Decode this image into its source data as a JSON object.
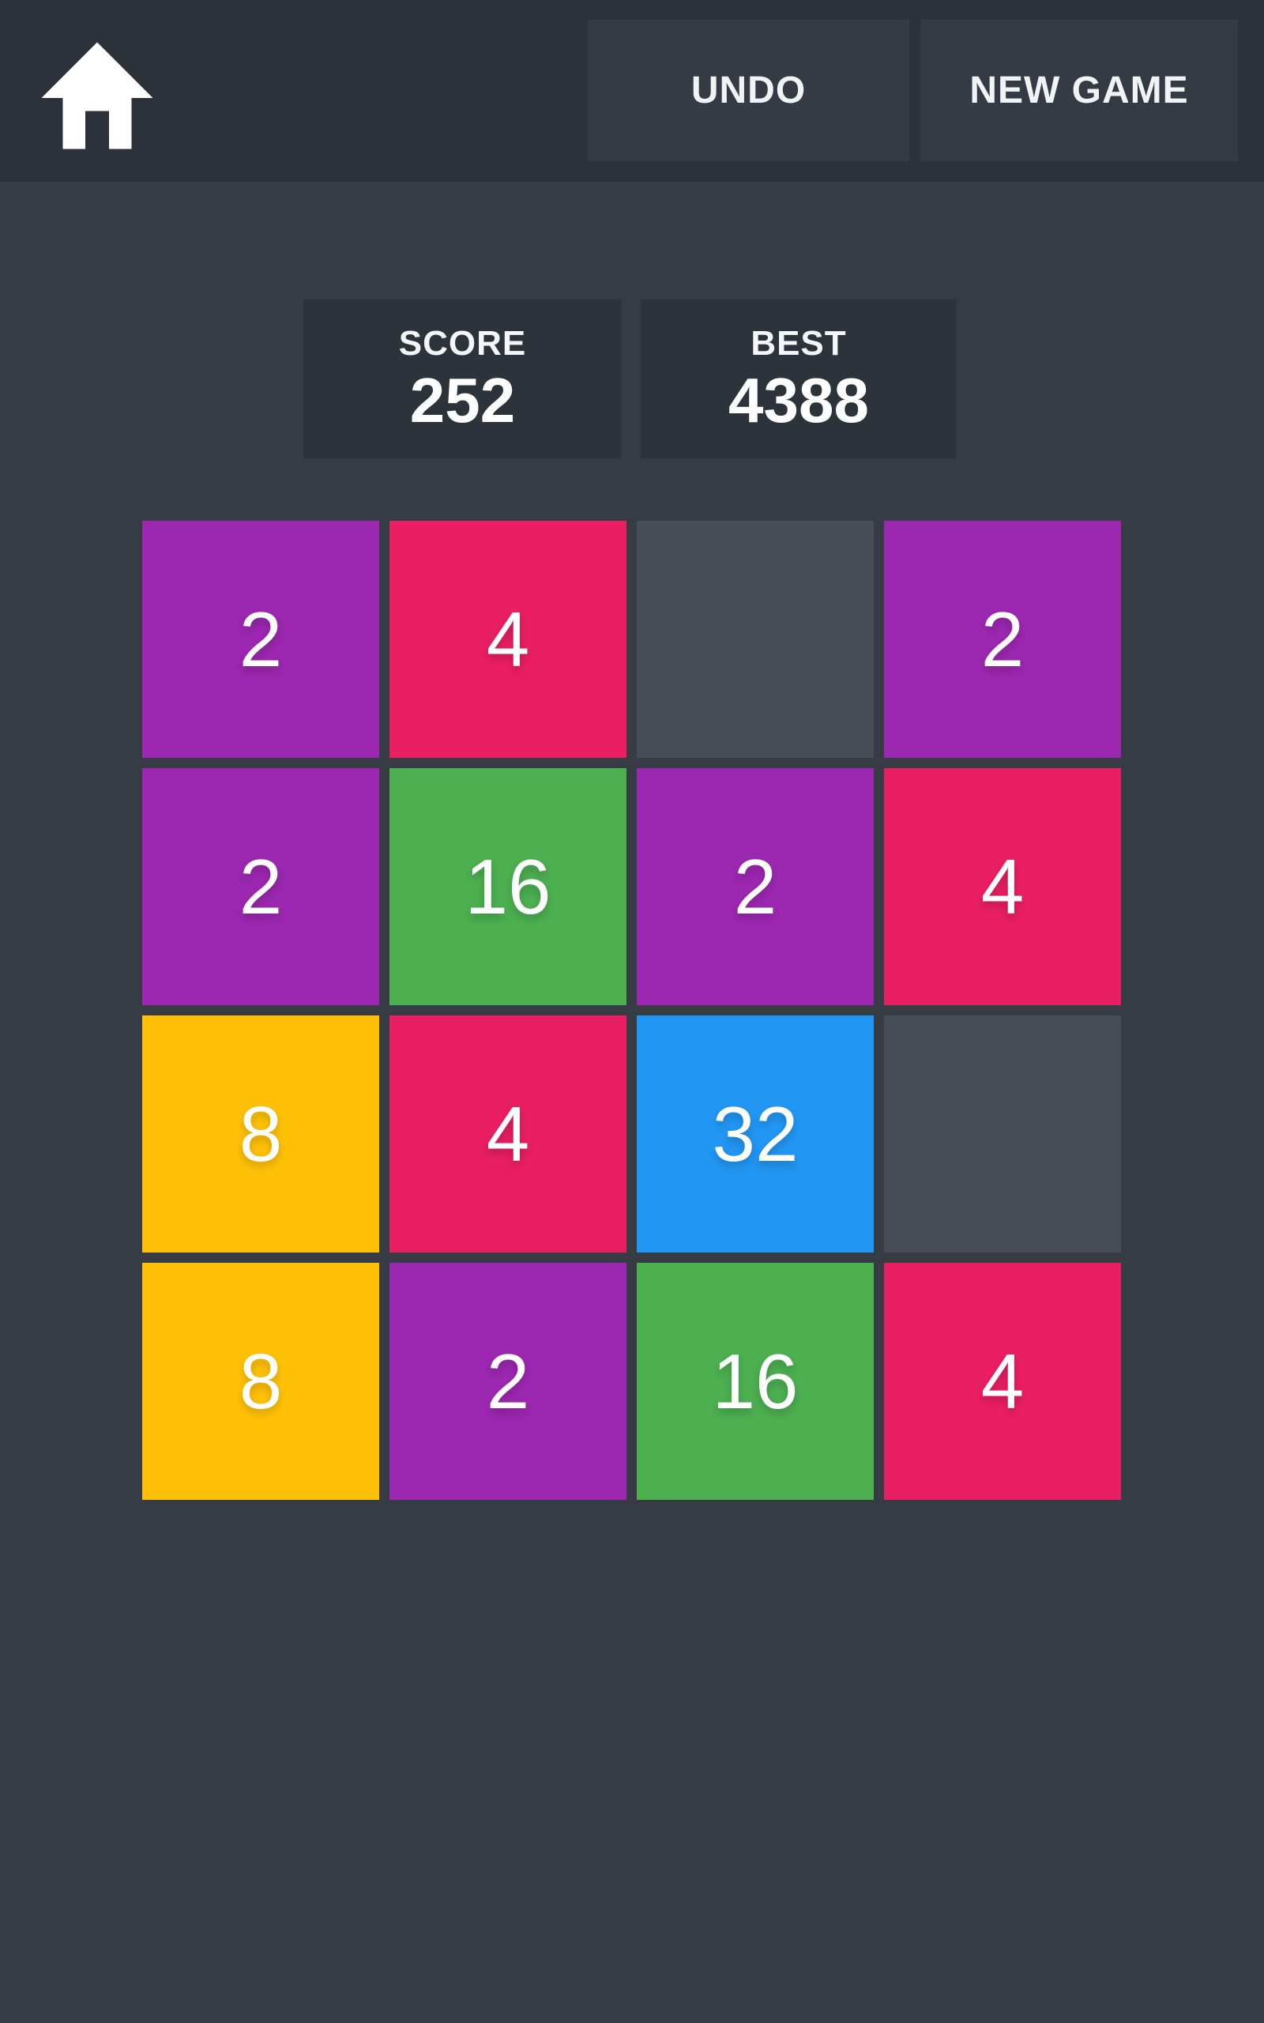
{
  "header": {
    "undo_label": "UNDO",
    "new_game_label": "NEW GAME",
    "home_icon": "home-icon"
  },
  "scoreboard": {
    "score_label": "SCORE",
    "score_value": "252",
    "best_label": "BEST",
    "best_value": "4388"
  },
  "board": {
    "rows": 4,
    "cols": 4,
    "cells": [
      {
        "value": "2",
        "color": "purple"
      },
      {
        "value": "4",
        "color": "pink"
      },
      {
        "value": "",
        "color": "empty"
      },
      {
        "value": "2",
        "color": "purple"
      },
      {
        "value": "2",
        "color": "purple"
      },
      {
        "value": "16",
        "color": "green"
      },
      {
        "value": "2",
        "color": "purple"
      },
      {
        "value": "4",
        "color": "pink"
      },
      {
        "value": "8",
        "color": "amber"
      },
      {
        "value": "4",
        "color": "pink"
      },
      {
        "value": "32",
        "color": "blue"
      },
      {
        "value": "",
        "color": "empty"
      },
      {
        "value": "8",
        "color": "amber"
      },
      {
        "value": "2",
        "color": "purple"
      },
      {
        "value": "16",
        "color": "green"
      },
      {
        "value": "4",
        "color": "pink"
      }
    ]
  },
  "colors": {
    "purple": "#9c27b0",
    "pink": "#e91e63",
    "green": "#4caf50",
    "amber": "#ffc107",
    "blue": "#2196f3",
    "empty": "#474d57",
    "page_bg": "#373b44",
    "header_bg": "#2d323a",
    "button_bg": "#353b44",
    "scorebox_bg": "#2d333b",
    "tile_text": "#ffffff"
  }
}
